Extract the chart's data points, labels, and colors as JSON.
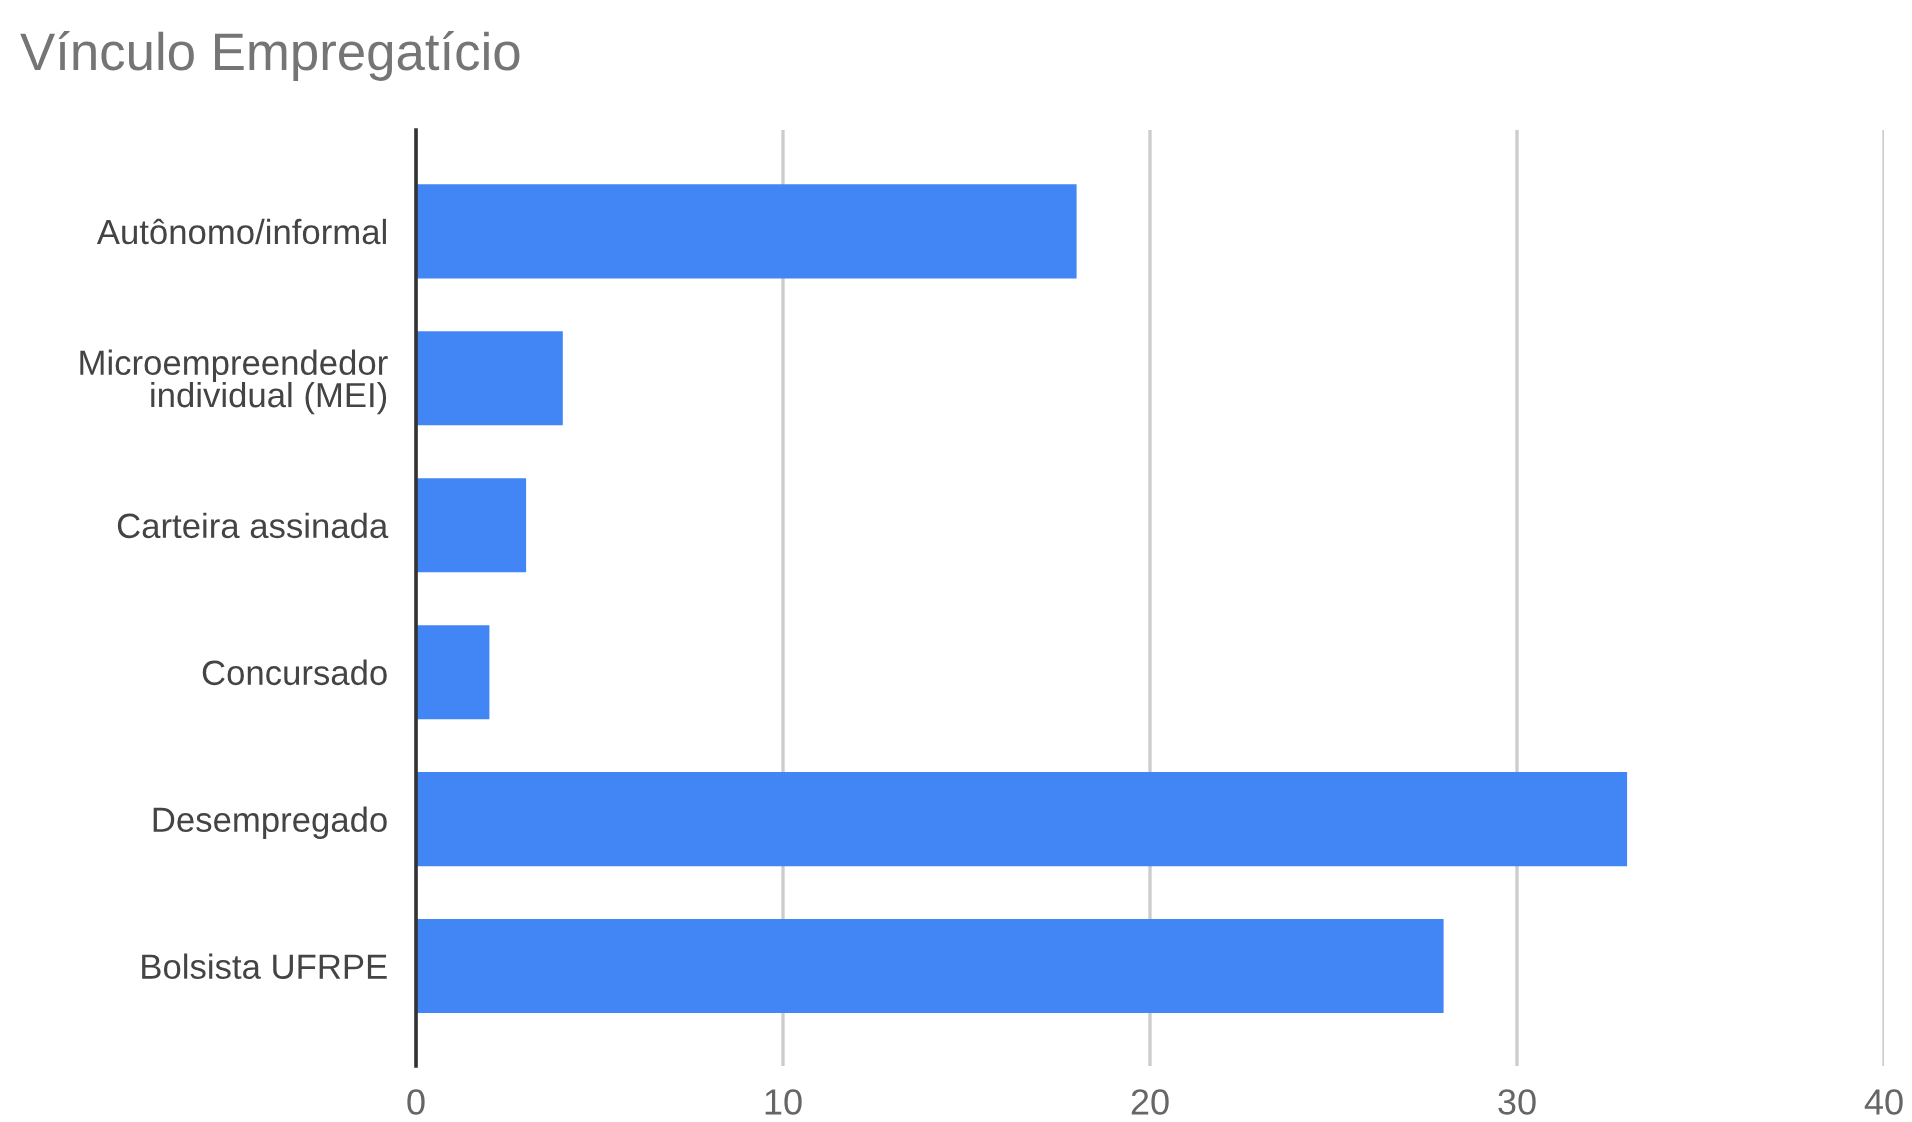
{
  "chart_data": {
    "type": "bar",
    "orientation": "horizontal",
    "title": "Vínculo Empregatício",
    "categories": [
      "Autônomo/informal",
      "Microempreendedor\nindividual (MEI)",
      "Carteira assinada",
      "Concursado",
      "Desempregado",
      "Bolsista UFRPE"
    ],
    "values": [
      18,
      4,
      3,
      2,
      33,
      28
    ],
    "color": "#4285f4",
    "xlim": [
      0,
      40
    ],
    "xticks": [
      0,
      10,
      20,
      30,
      40
    ],
    "grid": "x"
  }
}
